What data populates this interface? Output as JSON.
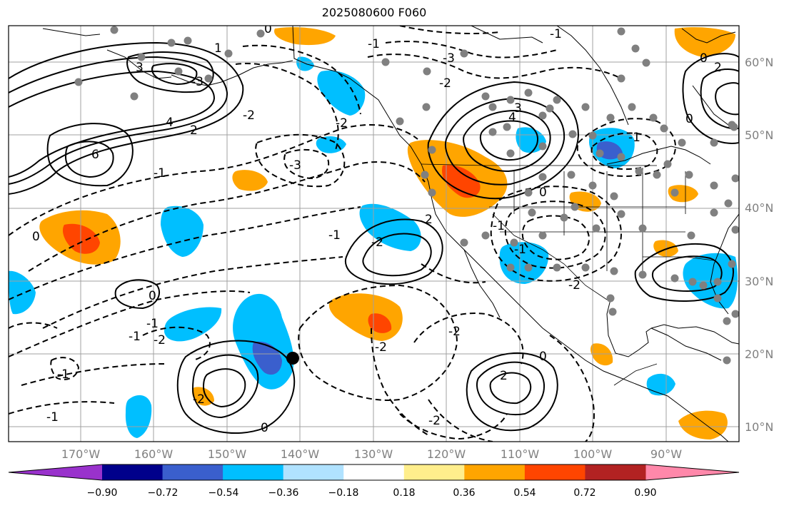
{
  "title": "2025080600 F060",
  "lat_labels": [
    "60°N",
    "50°N",
    "40°N",
    "30°N",
    "20°N",
    "10°N"
  ],
  "lon_labels": [
    "170°W",
    "160°W",
    "150°W",
    "140°W",
    "130°W",
    "120°W",
    "110°W",
    "100°W",
    "90°W"
  ],
  "colorbar": {
    "ticks": [
      "−0.90",
      "−0.72",
      "−0.54",
      "−0.36",
      "−0.18",
      "0.18",
      "0.36",
      "0.54",
      "0.72",
      "0.90"
    ],
    "colors": [
      "#9932cc",
      "#00008b",
      "#3a5fcd",
      "#00bfff",
      "#b0e2ff",
      "#ffffff",
      "#ffee8c",
      "#ffa500",
      "#ff4500",
      "#b22222",
      "#ff88aa"
    ]
  },
  "contour_labels": [
    "0",
    "-1",
    "-3",
    "-2",
    "4",
    "3",
    "6",
    "2",
    "0",
    "-2",
    "-1",
    "-3",
    "-1",
    "-2",
    "-2",
    "-1",
    "0",
    "0",
    "-1",
    "2",
    "0",
    "-1",
    "-1",
    "3",
    "4",
    "-2",
    "-1",
    "-2",
    "0",
    "-1",
    "0",
    "-2",
    "-1",
    "-1",
    "0",
    "-2",
    "-2",
    "2",
    "2",
    "1",
    "-3",
    "-2"
  ],
  "colors": {
    "contour": "#000000",
    "grid": "#a0a0a0",
    "station": "#808080",
    "marker": "#000000"
  }
}
